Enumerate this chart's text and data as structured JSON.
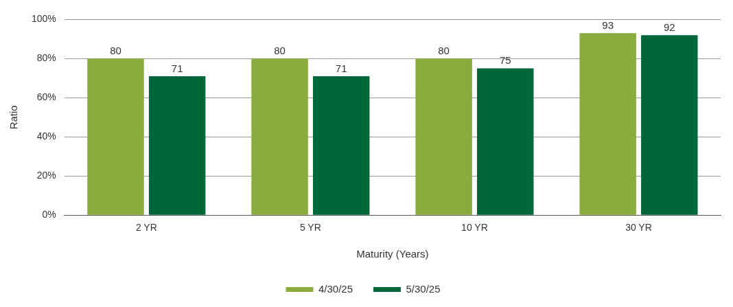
{
  "chart_data": {
    "type": "bar",
    "xlabel": "Maturity (Years)",
    "ylabel": "Ratio",
    "categories": [
      "2 YR",
      "5 YR",
      "10 YR",
      "30 YR"
    ],
    "series": [
      {
        "name": "4/30/25",
        "color": "#8aab3e",
        "values": [
          80,
          80,
          80,
          93
        ]
      },
      {
        "name": "5/30/25",
        "color": "#006838",
        "values": [
          71,
          71,
          75,
          92
        ]
      }
    ],
    "ylim": [
      0,
      100
    ],
    "yticks": [
      {
        "value": 0,
        "label": "0%"
      },
      {
        "value": 20,
        "label": "20%"
      },
      {
        "value": 40,
        "label": "40%"
      },
      {
        "value": 60,
        "label": "60%"
      },
      {
        "value": 80,
        "label": "80%"
      },
      {
        "value": 100,
        "label": "100%"
      }
    ],
    "grid": "y",
    "legend": "bottom",
    "data_labels": true
  }
}
